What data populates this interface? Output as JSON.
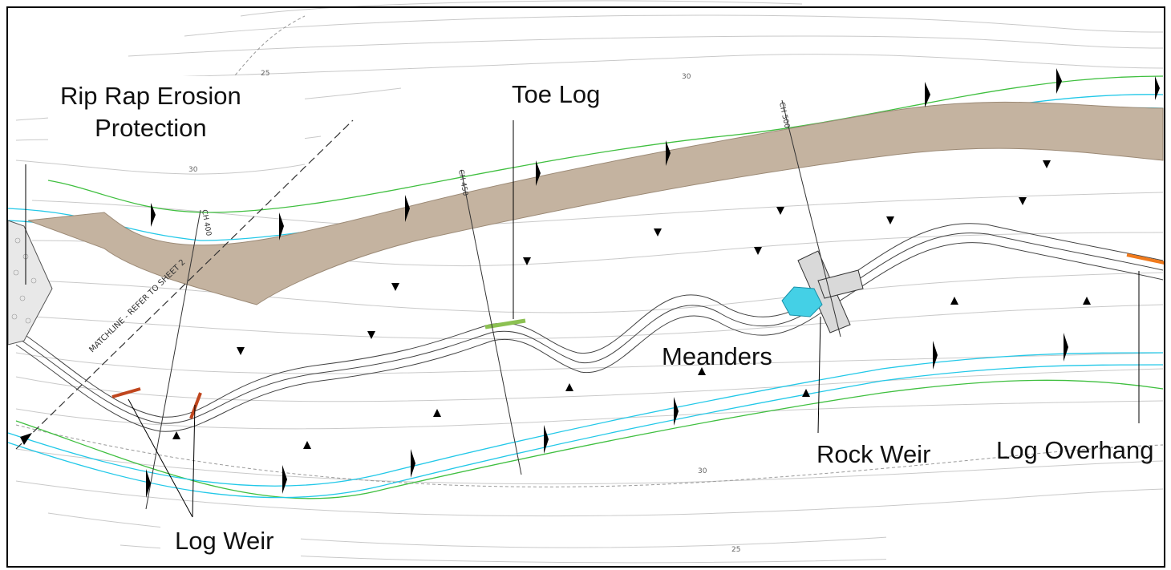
{
  "callouts": {
    "riprap_line1": "Rip Rap Erosion",
    "riprap_line2": "Protection",
    "toe_log": "Toe Log",
    "meanders": "Meanders",
    "rock_weir": "Rock Weir",
    "log_overhang": "Log Overhang",
    "log_weir": "Log Weir"
  },
  "drawing_labels": {
    "contour_25_top": "25",
    "contour_30_top": "30",
    "contour_30_left": "30",
    "contour_30_bottom": "30",
    "contour_25_bottom": "25",
    "matchline": "MATCHLINE - REFER TO SHEET 2",
    "ch_400": "CH 400",
    "ch_450": "CH 450",
    "ch_500": "CH 500"
  },
  "colors": {
    "bank_top": "#3fbf3f",
    "water_line": "#22c8e8",
    "channel_fill": "#c4b3a0",
    "log": "#c0461e",
    "toe_log": "#8cc152",
    "rock_weir": "#d9d9d9",
    "pool": "#44d0e6",
    "overhang": "#f07a1c"
  }
}
